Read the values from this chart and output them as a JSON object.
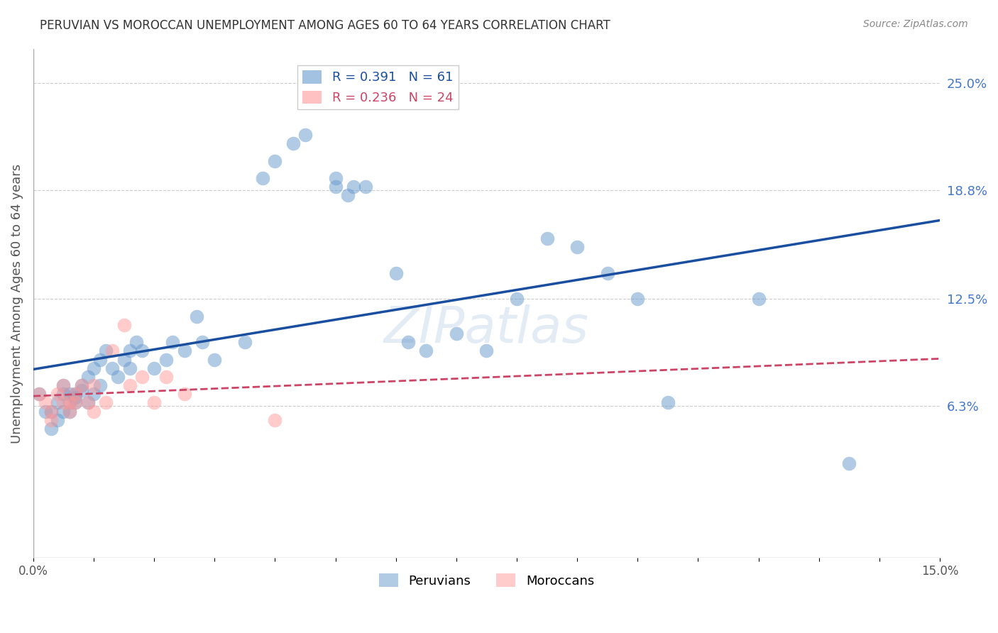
{
  "title": "PERUVIAN VS MOROCCAN UNEMPLOYMENT AMONG AGES 60 TO 64 YEARS CORRELATION CHART",
  "source": "Source: ZipAtlas.com",
  "ylabel": "Unemployment Among Ages 60 to 64 years",
  "xlim": [
    0.0,
    0.15
  ],
  "ylim": [
    -0.025,
    0.27
  ],
  "right_yticks": [
    0.25,
    0.188,
    0.125,
    0.063
  ],
  "right_ytick_labels": [
    "25.0%",
    "18.8%",
    "12.5%",
    "6.3%"
  ],
  "blue_color": "#6699CC",
  "pink_color": "#FF9999",
  "blue_line_color": "#1a4fa0",
  "pink_line_color": "#cc4466",
  "legend_R_blue": "0.391",
  "legend_N_blue": "61",
  "legend_R_pink": "0.236",
  "legend_N_pink": "24",
  "peruvian_x": [
    0.001,
    0.002,
    0.003,
    0.003,
    0.004,
    0.004,
    0.005,
    0.005,
    0.005,
    0.006,
    0.006,
    0.006,
    0.007,
    0.007,
    0.007,
    0.008,
    0.008,
    0.009,
    0.009,
    0.01,
    0.01,
    0.011,
    0.011,
    0.012,
    0.013,
    0.014,
    0.015,
    0.016,
    0.016,
    0.017,
    0.018,
    0.02,
    0.022,
    0.023,
    0.025,
    0.027,
    0.028,
    0.03,
    0.035,
    0.038,
    0.04,
    0.043,
    0.045,
    0.05,
    0.05,
    0.052,
    0.053,
    0.055,
    0.06,
    0.062,
    0.065,
    0.07,
    0.075,
    0.08,
    0.085,
    0.09,
    0.095,
    0.1,
    0.105,
    0.12,
    0.135
  ],
  "peruvian_y": [
    0.07,
    0.06,
    0.05,
    0.06,
    0.065,
    0.055,
    0.07,
    0.06,
    0.075,
    0.065,
    0.06,
    0.07,
    0.065,
    0.068,
    0.07,
    0.075,
    0.072,
    0.08,
    0.065,
    0.085,
    0.07,
    0.09,
    0.075,
    0.095,
    0.085,
    0.08,
    0.09,
    0.085,
    0.095,
    0.1,
    0.095,
    0.085,
    0.09,
    0.1,
    0.095,
    0.115,
    0.1,
    0.09,
    0.1,
    0.195,
    0.205,
    0.215,
    0.22,
    0.19,
    0.195,
    0.185,
    0.19,
    0.19,
    0.14,
    0.1,
    0.095,
    0.105,
    0.095,
    0.125,
    0.16,
    0.155,
    0.14,
    0.125,
    0.065,
    0.125,
    0.03
  ],
  "moroccan_x": [
    0.001,
    0.002,
    0.003,
    0.003,
    0.004,
    0.005,
    0.005,
    0.006,
    0.006,
    0.007,
    0.007,
    0.008,
    0.009,
    0.01,
    0.01,
    0.012,
    0.013,
    0.015,
    0.016,
    0.018,
    0.02,
    0.022,
    0.025,
    0.04
  ],
  "moroccan_y": [
    0.07,
    0.065,
    0.06,
    0.055,
    0.07,
    0.065,
    0.075,
    0.06,
    0.065,
    0.07,
    0.065,
    0.075,
    0.065,
    0.06,
    0.075,
    0.065,
    0.095,
    0.11,
    0.075,
    0.08,
    0.065,
    0.08,
    0.07,
    0.055
  ],
  "watermark": "ZIPatlas",
  "figsize": [
    14.06,
    8.92
  ],
  "dpi": 100
}
